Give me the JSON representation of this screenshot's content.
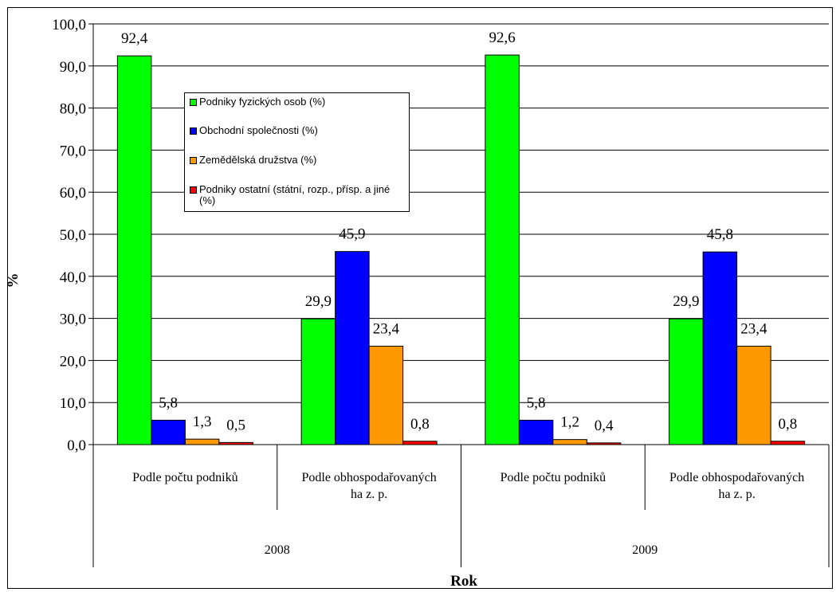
{
  "chart_data": {
    "type": "bar",
    "xlabel": "Rok",
    "ylabel": "%",
    "ylim": [
      0,
      100
    ],
    "ytick_step": 10,
    "ytick_labels": [
      "0,0",
      "10,0",
      "20,0",
      "30,0",
      "40,0",
      "50,0",
      "60,0",
      "70,0",
      "80,0",
      "90,0",
      "100,0"
    ],
    "grid": true,
    "legend_position": "upper-left inside plot",
    "categories": [
      "Podle počtu podniků",
      "Podle obhospodařovaných ha z. p.",
      "Podle počtu podniků",
      "Podle obhospodařovaných ha z. p."
    ],
    "groups": [
      {
        "label": "2008",
        "categories": [
          "Podle počtu podniků",
          "Podle obhospodařovaných ha z. p."
        ]
      },
      {
        "label": "2009",
        "categories": [
          "Podle počtu podniků",
          "Podle obhospodařovaných ha z. p."
        ]
      }
    ],
    "series": [
      {
        "name": "Podniky fyzických osob (%)",
        "color": "#00ff00",
        "values": [
          92.4,
          29.9,
          92.6,
          29.9
        ],
        "labels": [
          "92,4",
          "29,9",
          "92,6",
          "29,9"
        ]
      },
      {
        "name": "Obchodní společnosti (%)",
        "color": "#0000ff",
        "values": [
          5.8,
          45.9,
          5.8,
          45.8
        ],
        "labels": [
          "5,8",
          "45,9",
          "5,8",
          "45,8"
        ]
      },
      {
        "name": "Zemědělská družstva (%)",
        "color": "#ff9900",
        "values": [
          1.3,
          23.4,
          1.2,
          23.4
        ],
        "labels": [
          "1,3",
          "23,4",
          "1,2",
          "23,4"
        ]
      },
      {
        "name": "Podniky ostatní (státní, rozp., přísp. a jiné (%)",
        "color": "#ff0000",
        "values": [
          0.5,
          0.8,
          0.4,
          0.8
        ],
        "labels": [
          "0,5",
          "0,8",
          "0,4",
          "0,8"
        ]
      }
    ]
  }
}
